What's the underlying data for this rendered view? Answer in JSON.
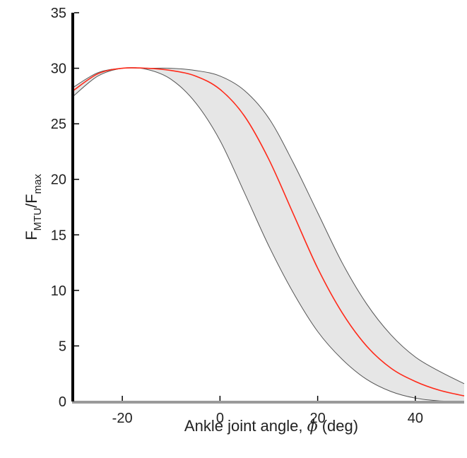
{
  "chart_data": {
    "type": "area",
    "xlabel": {
      "prefix": "Ankle joint angle, ",
      "symbol": "ϕ",
      "suffix": " (deg)"
    },
    "ylabel": {
      "f1": "F",
      "sub1": "MTU",
      "slash": "/F",
      "sub2": "max"
    },
    "xlim": [
      -30,
      50
    ],
    "ylim": [
      0,
      35
    ],
    "xticks": [
      -20,
      0,
      20,
      40
    ],
    "xtick_labels": [
      "-20",
      "0",
      "20",
      "40"
    ],
    "yticks": [
      0,
      5,
      10,
      15,
      20,
      25,
      30,
      35
    ],
    "ytick_labels": [
      "0",
      "5",
      "10",
      "15",
      "20",
      "25",
      "30",
      "35"
    ],
    "grid": false,
    "colors": {
      "band_fill": "#e6e6e6",
      "band_edge": "#555555",
      "mean_line": "#ff2a1a",
      "axis": "#000000",
      "axis_baseline": "#9a9a9a"
    },
    "series": [
      {
        "role": "mean",
        "x": [
          -30,
          -25,
          -20,
          -15,
          -10,
          -5,
          0,
          5,
          10,
          15,
          20,
          25,
          30,
          35,
          40,
          45,
          50
        ],
        "y": [
          28.0,
          29.5,
          30.0,
          30.0,
          29.8,
          29.3,
          28.1,
          25.7,
          21.8,
          16.9,
          12.0,
          8.0,
          5.0,
          3.0,
          1.8,
          1.0,
          0.5
        ]
      },
      {
        "role": "upper",
        "x": [
          -30,
          -25,
          -20,
          -15,
          -10,
          -5,
          0,
          5,
          10,
          15,
          20,
          25,
          30,
          35,
          40,
          45,
          50
        ],
        "y": [
          28.3,
          29.6,
          30.0,
          30.0,
          30.0,
          29.8,
          29.3,
          28.0,
          25.5,
          21.5,
          17.0,
          12.5,
          8.8,
          6.0,
          4.0,
          2.7,
          1.6
        ]
      },
      {
        "role": "lower",
        "x": [
          -30,
          -25,
          -20,
          -15,
          -10,
          -5,
          0,
          5,
          10,
          15,
          20,
          25,
          30,
          35,
          40,
          45,
          50
        ],
        "y": [
          27.5,
          29.3,
          30.0,
          29.9,
          29.0,
          26.9,
          23.5,
          18.8,
          14.0,
          9.8,
          6.3,
          3.8,
          2.0,
          0.9,
          0.3,
          0.05,
          0.0
        ]
      }
    ]
  }
}
